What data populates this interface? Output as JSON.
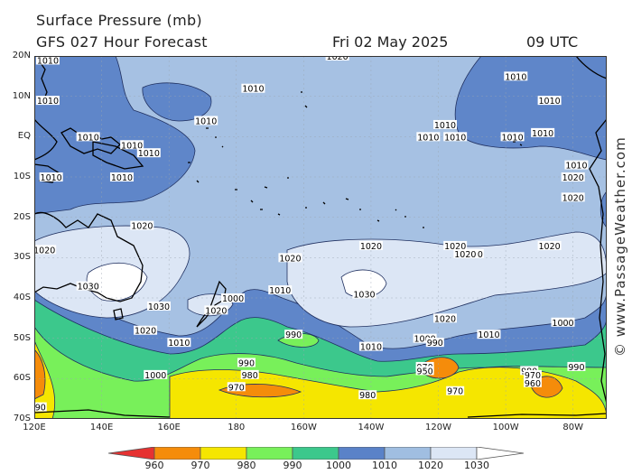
{
  "title": {
    "line1": "Surface Pressure (mb)",
    "line2": "GFS 027 Hour Forecast",
    "date": "Fri 02 May 2025",
    "time": "09 UTC"
  },
  "watermark": "© www.PassageWeather.com",
  "map": {
    "lat_labels": [
      "20N",
      "10N",
      "EQ",
      "10S",
      "20S",
      "30S",
      "40S",
      "50S",
      "60S",
      "70S"
    ],
    "lon_labels": [
      "120E",
      "140E",
      "160E",
      "180",
      "160W",
      "140W",
      "120W",
      "100W",
      "80W"
    ],
    "region": "South Pacific"
  },
  "isobar_labels": [
    {
      "text": "1020",
      "lat": 20,
      "lon": -150
    },
    {
      "text": "1010",
      "lat": 19,
      "lon": 124
    },
    {
      "text": "1010",
      "lat": 12,
      "lon": 185
    },
    {
      "text": "1010",
      "lat": 9,
      "lon": 124
    },
    {
      "text": "1010",
      "lat": 4,
      "lon": 171
    },
    {
      "text": "1010",
      "lat": 0,
      "lon": 136
    },
    {
      "text": "1010",
      "lat": -2,
      "lon": 149
    },
    {
      "text": "1010",
      "lat": -4,
      "lon": 154
    },
    {
      "text": "1010",
      "lat": -10,
      "lon": 125
    },
    {
      "text": "1010",
      "lat": -10,
      "lon": 146
    },
    {
      "text": "1020",
      "lat": -22,
      "lon": 152
    },
    {
      "text": "1020",
      "lat": -28,
      "lon": 123
    },
    {
      "text": "1030",
      "lat": -37,
      "lon": 136
    },
    {
      "text": "1030",
      "lat": -42,
      "lon": 157
    },
    {
      "text": "1020",
      "lat": -48,
      "lon": 153
    },
    {
      "text": "1010",
      "lat": -51,
      "lon": 163
    },
    {
      "text": "1000",
      "lat": -59,
      "lon": 156
    },
    {
      "text": "990",
      "lat": -67,
      "lon": 121
    },
    {
      "text": "970",
      "lat": -62,
      "lon": 180
    },
    {
      "text": "980",
      "lat": -59,
      "lon": 184
    },
    {
      "text": "990",
      "lat": -56,
      "lon": 183
    },
    {
      "text": "990",
      "lat": -49,
      "lon": -163
    },
    {
      "text": "1000",
      "lat": -40,
      "lon": 179
    },
    {
      "text": "1020",
      "lat": -43,
      "lon": 174
    },
    {
      "text": "1010",
      "lat": -38,
      "lon": -167
    },
    {
      "text": "1020",
      "lat": -30,
      "lon": -164
    },
    {
      "text": "1020",
      "lat": -27,
      "lon": -140
    },
    {
      "text": "1030",
      "lat": -39,
      "lon": -142
    },
    {
      "text": "1020",
      "lat": -45,
      "lon": -118
    },
    {
      "text": "1020",
      "lat": -27,
      "lon": -115
    },
    {
      "text": "1020",
      "lat": -29,
      "lon": -110
    },
    {
      "text": "1020",
      "lat": -27,
      "lon": -87
    },
    {
      "text": "1010",
      "lat": -52,
      "lon": -140
    },
    {
      "text": "1000",
      "lat": -50,
      "lon": -124
    },
    {
      "text": "990",
      "lat": -51,
      "lon": -121
    },
    {
      "text": "970",
      "lat": -57,
      "lon": -124
    },
    {
      "text": "950",
      "lat": -58,
      "lon": -124
    },
    {
      "text": "980",
      "lat": -64,
      "lon": -141
    },
    {
      "text": "970",
      "lat": -63,
      "lon": -115
    },
    {
      "text": "1010",
      "lat": -49,
      "lon": -105
    },
    {
      "text": "1000",
      "lat": -46,
      "lon": -83
    },
    {
      "text": "990",
      "lat": -57,
      "lon": -79
    },
    {
      "text": "980",
      "lat": -58,
      "lon": -93
    },
    {
      "text": "970",
      "lat": -59,
      "lon": -92
    },
    {
      "text": "960",
      "lat": -61,
      "lon": -92
    },
    {
      "text": "1010",
      "lat": 0,
      "lon": -123
    },
    {
      "text": "1010",
      "lat": 0,
      "lon": -115
    },
    {
      "text": "1010",
      "lat": 3,
      "lon": -118
    },
    {
      "text": "1010",
      "lat": 0,
      "lon": -98
    },
    {
      "text": "1010",
      "lat": 1,
      "lon": -89
    },
    {
      "text": "1010",
      "lat": 15,
      "lon": -97
    },
    {
      "text": "1010",
      "lat": 9,
      "lon": -87
    },
    {
      "text": "1010",
      "lat": -7,
      "lon": -79
    },
    {
      "text": "1020",
      "lat": -10,
      "lon": -80
    },
    {
      "text": "1020",
      "lat": -15,
      "lon": -80
    },
    {
      "text": "1020",
      "lat": -29,
      "lon": -112
    }
  ],
  "legend": {
    "labels": [
      "960",
      "970",
      "980",
      "990",
      "1000",
      "1010",
      "1020",
      "1030"
    ],
    "colors": [
      "#e63232",
      "#f58c0a",
      "#f5e600",
      "#78f05a",
      "#3cc88c",
      "#5a82c8",
      "#a0bee1",
      "#dce6f5",
      "#ffffff"
    ]
  }
}
